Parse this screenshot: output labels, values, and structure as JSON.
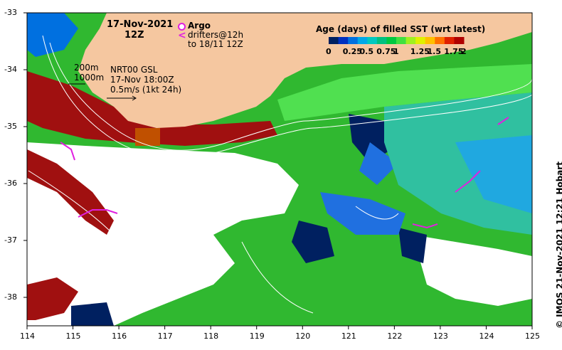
{
  "title": {
    "date": "17-Nov-2021",
    "time": "12Z"
  },
  "legend": {
    "title": "Age (days) of filled SST (wrt latest)",
    "labels": [
      "0",
      "0.25",
      "0.5",
      "0.75",
      "1",
      "1.25",
      "1.5",
      "1.75",
      "2"
    ],
    "colors": [
      "#002060",
      "#0030c0",
      "#0070e0",
      "#00a8e8",
      "#00c8c0",
      "#00c080",
      "#00c840",
      "#40e040",
      "#a0f020",
      "#e0f000",
      "#ffc000",
      "#ff7000",
      "#e02000",
      "#b00000"
    ]
  },
  "markers": {
    "argo_label": "Argo",
    "drifters_label": "drifters@12h",
    "drifters_sub": "to 18/11 12Z"
  },
  "info": {
    "isobath1": "200m",
    "isobath2": "1000m",
    "product": "NRT00 GSL",
    "product_time": "17-Nov 18:00Z",
    "scale": "0.5m/s (1kt 24h)"
  },
  "credit": "© IMOS 21-Nov-2021 12:21 Hobart",
  "axes": {
    "lon_ticks": [
      "114",
      "115",
      "116",
      "117",
      "118",
      "119",
      "120",
      "121",
      "122",
      "123",
      "124",
      "125"
    ],
    "lat_ticks": [
      "-33",
      "-34",
      "-35",
      "-36",
      "-37",
      "-38"
    ]
  },
  "colors": {
    "land": "#f5c7a0",
    "argo": "#e020e0",
    "contour": "#ffffff"
  }
}
